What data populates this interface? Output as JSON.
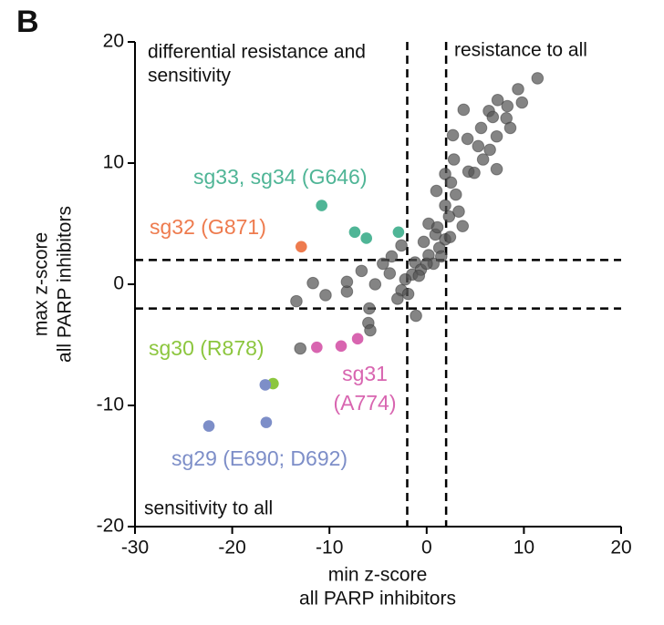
{
  "chart_data": {
    "type": "scatter",
    "panel": "B",
    "xlabel": [
      "min z-score",
      "all PARP inhibitors"
    ],
    "ylabel": [
      "max z-score",
      "all PARP inhibitors"
    ],
    "xlim": [
      -30,
      20
    ],
    "ylim": [
      -20,
      20
    ],
    "xticks": [
      -30,
      -20,
      -10,
      0,
      10,
      20
    ],
    "yticks": [
      -20,
      -10,
      0,
      10,
      20
    ],
    "reference_lines": {
      "x": [
        -2,
        2
      ],
      "y": [
        -2,
        2
      ]
    },
    "annotations": [
      {
        "lines": [
          "differential resistance and",
          "sensitivity"
        ],
        "corner": "top-left"
      },
      {
        "lines": [
          "resistance to all"
        ],
        "corner": "top-right"
      },
      {
        "lines": [
          "sensitivity to all"
        ],
        "corner": "bottom-left"
      }
    ],
    "series": [
      {
        "color": "#555555",
        "x": [
          -13,
          -13.4,
          -11.7,
          -10.4,
          -8.2,
          -8.2,
          -6.7,
          -5.3,
          -5.9,
          -6,
          -5.8,
          -3.8,
          -3.6,
          -4.5,
          -2.6,
          -1.1,
          11.4,
          9.4,
          7.3,
          8.3,
          9.8,
          6.4,
          3.8,
          5.6,
          6.5,
          7.2,
          6.8,
          4.2,
          2.7,
          5.3,
          2.8,
          1.9,
          4.3,
          2.5,
          3,
          1,
          1.9,
          2.3,
          0.2,
          3.3,
          0.9,
          -0.3,
          1.9,
          1.3,
          0.2,
          -1.2,
          -0.6,
          -1.5,
          0.7,
          -2.2,
          -2.6,
          -1.9,
          -3,
          -0.8,
          0,
          1.5,
          2.4,
          3.7,
          1.1,
          4.9,
          8.2,
          5.8,
          7.2,
          8.6
        ],
        "y": [
          -5.3,
          -1.4,
          0.1,
          -0.9,
          -0.6,
          0.2,
          1.1,
          0,
          -2,
          -3.2,
          -3.8,
          0.9,
          2.3,
          1.7,
          3.2,
          -2.6,
          17,
          16.1,
          15.2,
          14.7,
          15,
          14.3,
          14.4,
          12.9,
          11.1,
          12.2,
          13.8,
          12,
          12.3,
          11.4,
          10.3,
          9.1,
          9.3,
          8.4,
          7.4,
          7.7,
          6.5,
          5.6,
          5,
          6,
          4.1,
          3.5,
          3.7,
          3,
          2.4,
          1.8,
          1.2,
          0.8,
          1.7,
          0.4,
          -0.5,
          -0.8,
          -1.2,
          0.7,
          1.7,
          2.3,
          3.9,
          4.8,
          4.7,
          9.2,
          13.7,
          10.3,
          9.5,
          12.9
        ]
      },
      {
        "name": "sg33, sg34 (G646)",
        "color": "#4fb596",
        "x": [
          -10.8,
          -7.4,
          -6.2,
          -2.9
        ],
        "y": [
          6.5,
          4.3,
          3.8,
          4.3
        ]
      },
      {
        "name": "sg32 (G871)",
        "color": "#ee7b4e",
        "x": [
          -12.9
        ],
        "y": [
          3.1
        ]
      },
      {
        "name": "sg30 (R878)",
        "color": "#8cc63e",
        "x": [
          -15.8
        ],
        "y": [
          -8.2
        ]
      },
      {
        "name": "sg31 (A774)",
        "color": "#d865b0",
        "wrap": true,
        "x": [
          -11.3,
          -8.8,
          -7.1
        ],
        "y": [
          -5.2,
          -5.1,
          -4.5
        ]
      },
      {
        "name": "sg29 (E690; D692)",
        "color": "#7d8ec8",
        "x": [
          -16.6,
          -22.4,
          -16.5
        ],
        "y": [
          -8.3,
          -11.7,
          -11.4
        ]
      }
    ]
  }
}
